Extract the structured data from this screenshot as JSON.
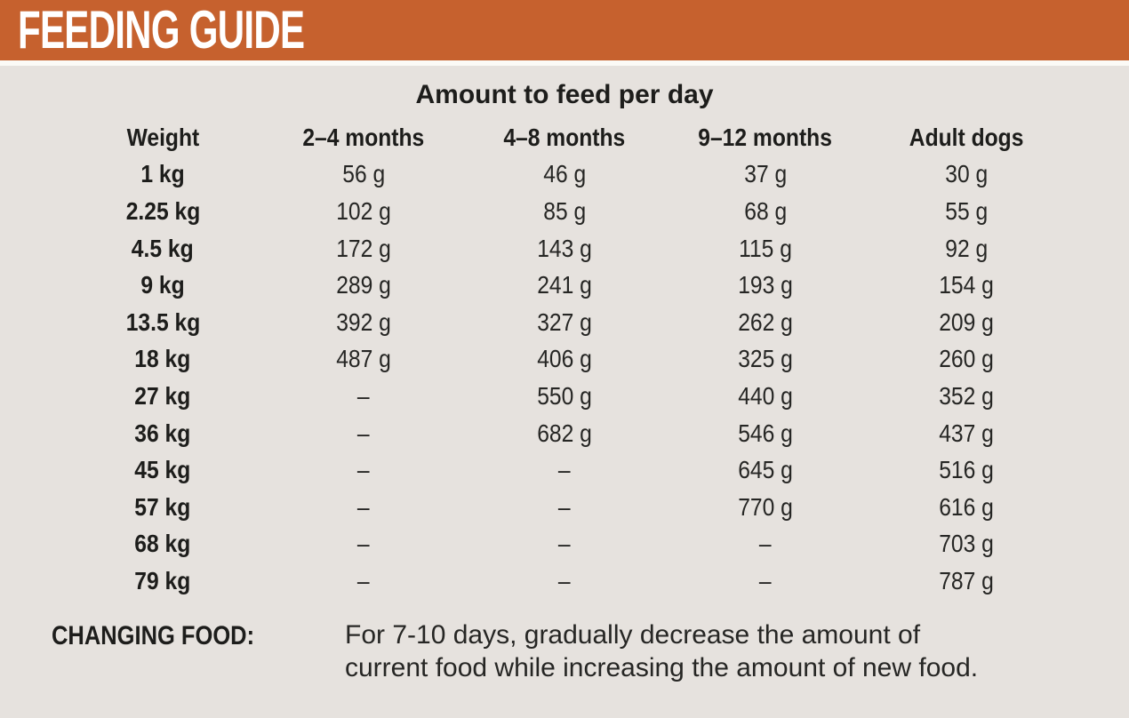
{
  "header": {
    "title": "FEEDING GUIDE"
  },
  "table": {
    "title": "Amount to feed per day",
    "columns": [
      "Weight",
      "2–4 months",
      "4–8 months",
      "9–12 months",
      "Adult dogs"
    ],
    "rows": [
      {
        "weight": "1 kg",
        "values": [
          "56 g",
          "46 g",
          "37 g",
          "30 g"
        ]
      },
      {
        "weight": "2.25 kg",
        "values": [
          "102 g",
          "85 g",
          "68 g",
          "55 g"
        ]
      },
      {
        "weight": "4.5 kg",
        "values": [
          "172 g",
          "143 g",
          "115 g",
          "92 g"
        ]
      },
      {
        "weight": "9 kg",
        "values": [
          "289 g",
          "241 g",
          "193 g",
          "154 g"
        ]
      },
      {
        "weight": "13.5 kg",
        "values": [
          "392 g",
          "327 g",
          "262 g",
          "209 g"
        ]
      },
      {
        "weight": "18 kg",
        "values": [
          "487 g",
          "406 g",
          "325 g",
          "260 g"
        ]
      },
      {
        "weight": "27 kg",
        "values": [
          "–",
          "550 g",
          "440 g",
          "352 g"
        ]
      },
      {
        "weight": "36 kg",
        "values": [
          "–",
          "682 g",
          "546 g",
          "437 g"
        ]
      },
      {
        "weight": "45 kg",
        "values": [
          "–",
          "–",
          "645 g",
          "516 g"
        ]
      },
      {
        "weight": "57 kg",
        "values": [
          "–",
          "–",
          "770 g",
          "616 g"
        ]
      },
      {
        "weight": "68 kg",
        "values": [
          "–",
          "–",
          "–",
          "703 g"
        ]
      },
      {
        "weight": "79 kg",
        "values": [
          "–",
          "–",
          "–",
          "787 g"
        ]
      }
    ],
    "empty_marker": "–"
  },
  "footer": {
    "label": "CHANGING FOOD:",
    "note_lines": [
      "For 7-10 days, gradually decrease the amount of",
      "current food while increasing the amount of new food."
    ]
  },
  "colors": {
    "accent_orange": "#C6612E",
    "panel_background": "#E6E2DE",
    "divider_white": "#FBFAF6",
    "text_black": "#1D1D1B"
  }
}
